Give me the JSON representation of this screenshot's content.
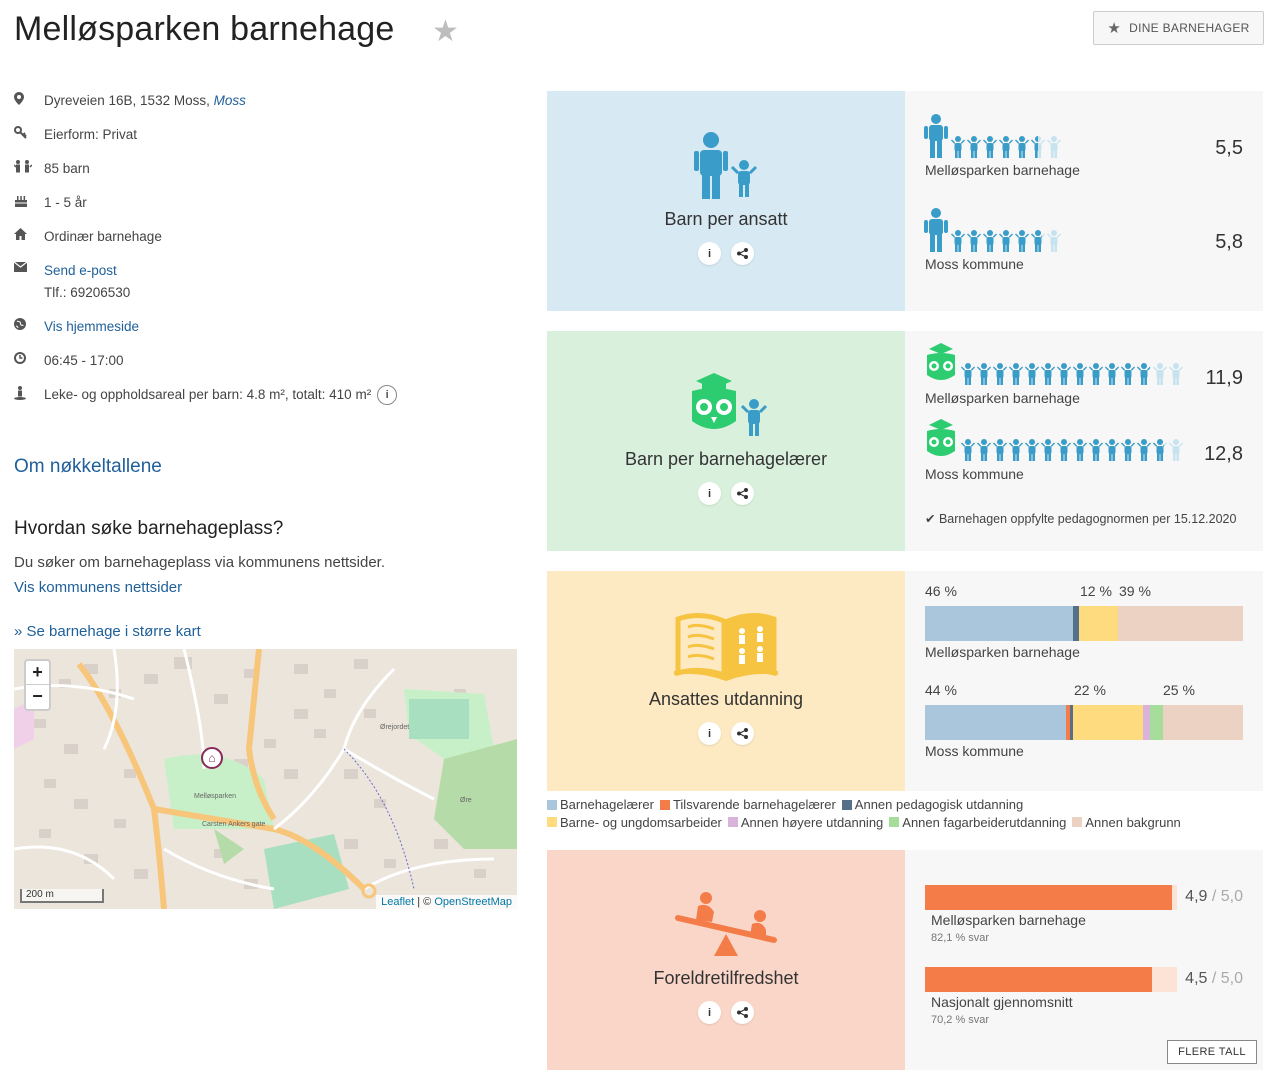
{
  "title": "Melløsparken barnehage",
  "dine_barnehager": "DINE BARNEHAGER",
  "info": {
    "address": "Dyreveien 16B, 1532 Moss,",
    "kommune": "Moss",
    "eierform": "Eierform: Privat",
    "barn": "85 barn",
    "alder": "1 - 5 år",
    "type": "Ordinær barnehage",
    "epost": "Send e-post",
    "tlf": "Tlf.: 69206530",
    "hjemmeside": "Vis hjemmeside",
    "apningstid": "06:45 - 17:00",
    "areal": "Leke- og oppholdsareal per barn: 4.8 m², totalt: 410 m²",
    "info_i": "i"
  },
  "om_nokkeltall": "Om nøkkeltallene",
  "soke": {
    "heading": "Hvordan søke barnehageplass?",
    "text": "Du søker om barnehageplass via kommunens nettsider.",
    "link": "Vis kommunens nettsider"
  },
  "kart_link": "» Se barnehage i større kart",
  "map": {
    "zoom_in": "+",
    "zoom_out": "−",
    "scale": "200 m",
    "attribution_leaflet": "Leaflet",
    "attribution_sep": " | © ",
    "attribution_osm": "OpenStreetMap",
    "labels": [
      "Melløsparken",
      "Ørejordet",
      "Carsten Ankers gate",
      "Øre"
    ]
  },
  "card_buttons": {
    "info": "i",
    "share": "⋖"
  },
  "cards": {
    "barn_per_ansatt": {
      "title": "Barn per ansatt",
      "rows": [
        {
          "label": "Melløsparken barnehage",
          "value": "5,5",
          "children": 5.5
        },
        {
          "label": "Moss kommune",
          "value": "5,8",
          "children": 5.8
        }
      ]
    },
    "barn_per_laerer": {
      "title": "Barn per barnehagelærer",
      "rows": [
        {
          "label": "Melløsparken barnehage",
          "value": "11,9",
          "children": 11.9
        },
        {
          "label": "Moss kommune",
          "value": "12,8",
          "children": 12.8
        }
      ],
      "norm": "Barnehagen oppfylte pedagognormen per 15.12.2020"
    },
    "utdanning": {
      "title": "Ansattes utdanning",
      "rows": [
        {
          "label": "Melløsparken barnehage",
          "pct_labels": [
            "46 %",
            "12 %",
            "39 %"
          ],
          "segments": [
            46,
            0,
            2,
            12,
            0,
            0,
            39
          ]
        },
        {
          "label": "Moss kommune",
          "pct_labels": [
            "44 %",
            "22 %",
            "25 %"
          ],
          "segments": [
            44,
            1,
            1,
            22,
            2,
            4,
            25
          ]
        }
      ]
    },
    "tilfredshet": {
      "title": "Foreldretilfredshet",
      "rows": [
        {
          "label": "Melløsparken barnehage",
          "value": "4,9",
          "of": " / 5,0",
          "sub": "82,1 % svar",
          "score": 4.9
        },
        {
          "label": "Nasjonalt gjennomsnitt",
          "value": "4,5",
          "of": " / 5,0",
          "sub": "70,2 % svar",
          "score": 4.5
        }
      ],
      "flere": "FLERE TALL"
    }
  },
  "legend": [
    {
      "label": "Barnehagelærer",
      "color": "#a9c6dc"
    },
    {
      "label": "Tilsvarende barnehagelærer",
      "color": "#f47c48"
    },
    {
      "label": "Annen pedagogisk utdanning",
      "color": "#56708a"
    },
    {
      "label": "Barne- og ungdomsarbeider",
      "color": "#fddb7e"
    },
    {
      "label": "Annen høyere utdanning",
      "color": "#d9b3d9"
    },
    {
      "label": "Annen fagarbeiderutdanning",
      "color": "#a6dd9a"
    },
    {
      "label": "Annen bakgrunn",
      "color": "#ecd2c2"
    }
  ],
  "colors": {
    "ansatt_icon": "#3a9cc8",
    "ansatt_icon_light": "#c6e3ef",
    "laerer_icon": "#2ecc71",
    "child_icon": "#3a9cc8",
    "utdanning_icon": "#f7c442",
    "sat_icon": "#f47c48"
  }
}
